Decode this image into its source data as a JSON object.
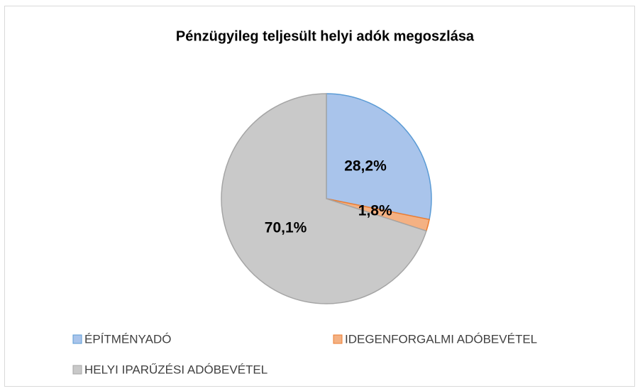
{
  "chart_data": {
    "type": "pie",
    "title": "Pénzügyileg teljesült helyi adók megoszlása",
    "categories": [
      "ÉPÍTMÉNYADÓ",
      "IDEGENFORGALMI ADÓBEVÉTEL",
      "HELYI IPARŰZÉSI ADÓBEVÉTEL"
    ],
    "values": [
      28.2,
      1.8,
      70.1
    ],
    "value_labels": [
      "28,2%",
      "1,8%",
      "70,1%"
    ],
    "colors": [
      "#a9c4eb",
      "#f4b183",
      "#c9c9c9"
    ],
    "edge_colors": [
      "#5b9bd5",
      "#ed7d31",
      "#a5a5a5"
    ],
    "legend": "bottom"
  }
}
